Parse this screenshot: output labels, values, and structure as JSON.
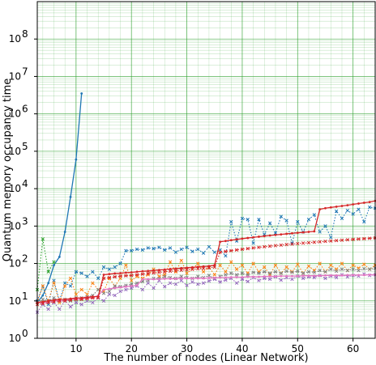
{
  "chart_data": {
    "type": "line",
    "title": "",
    "xlabel": "The number of nodes (Linear Network)",
    "ylabel": "Quantum memory occupancy time",
    "xlim": [
      3,
      64
    ],
    "ylim": [
      1,
      1000000000
    ],
    "yscale": "log",
    "grid": true,
    "grid_minor": true,
    "grid_color": "#2ca02c",
    "legend": "none",
    "x_ticks": [
      10,
      20,
      30,
      40,
      50,
      60
    ],
    "x_tick_labels": [
      "10",
      "20",
      "30",
      "40",
      "50",
      "60"
    ],
    "y_ticks": [
      1,
      10,
      100,
      1000,
      10000,
      100000,
      1000000,
      10000000,
      100000000
    ],
    "y_tick_labels": [
      {
        "base": "10",
        "exp": "0"
      },
      {
        "base": "10",
        "exp": "1"
      },
      {
        "base": "10",
        "exp": "2"
      },
      {
        "base": "10",
        "exp": "3"
      },
      {
        "base": "10",
        "exp": "4"
      },
      {
        "base": "10",
        "exp": "5"
      },
      {
        "base": "10",
        "exp": "6"
      },
      {
        "base": "10",
        "exp": "7"
      },
      {
        "base": "10",
        "exp": "8"
      }
    ],
    "series": [
      {
        "color": "#1f77b4",
        "style": "solid",
        "marker": "dot",
        "x": [
          3,
          4,
          5,
          6,
          7,
          8,
          9,
          10,
          11
        ],
        "y": [
          9,
          14,
          30,
          90,
          150,
          700,
          6000,
          60000,
          3500000
        ]
      },
      {
        "color": "#2ca02c",
        "style": "dotted",
        "marker": "x",
        "x": [
          3,
          4,
          5,
          6
        ],
        "y": [
          20,
          450,
          60,
          110
        ]
      },
      {
        "color": "#1f77b4",
        "style": "dotted",
        "marker": "x",
        "x": [
          3,
          4,
          5,
          6,
          7,
          8,
          9,
          10,
          11,
          12,
          13,
          14,
          15,
          16,
          17,
          18,
          19,
          20,
          21,
          22,
          23,
          24,
          25,
          26,
          27,
          28,
          29,
          30,
          31,
          32,
          33,
          34,
          35,
          36,
          37,
          38,
          39,
          40,
          41,
          42,
          43,
          44,
          45,
          46,
          47,
          48,
          49,
          50,
          51,
          52,
          53,
          54,
          55,
          56,
          57,
          58,
          59,
          60,
          61,
          62,
          63,
          64
        ],
        "y": [
          10,
          25,
          8,
          35,
          10,
          30,
          25,
          60,
          55,
          45,
          60,
          40,
          80,
          70,
          80,
          100,
          220,
          220,
          240,
          230,
          260,
          250,
          270,
          230,
          260,
          200,
          240,
          270,
          210,
          240,
          190,
          280,
          200,
          230,
          160,
          1300,
          400,
          1600,
          1500,
          350,
          1500,
          600,
          1200,
          650,
          1800,
          1400,
          350,
          1300,
          700,
          1500,
          2000,
          700,
          1000,
          500,
          2500,
          1600,
          2600,
          2100,
          2800,
          1300,
          3200,
          3000
        ]
      },
      {
        "color": "#ff7f0e",
        "style": "dotted",
        "marker": "x",
        "x": [
          3,
          4,
          5,
          6,
          7,
          8,
          9,
          10,
          11,
          12,
          13,
          14,
          15,
          16,
          17,
          18,
          19,
          20,
          21,
          22,
          23,
          24,
          25,
          26,
          27,
          28,
          29,
          30,
          31,
          32,
          33,
          34,
          35,
          36,
          37,
          38,
          39,
          40,
          41,
          42,
          43,
          44,
          45,
          46,
          47,
          48,
          49,
          50,
          51,
          52,
          53,
          54,
          55,
          56,
          57,
          58,
          59,
          60,
          61,
          62,
          63,
          64
        ],
        "y": [
          9,
          25,
          10,
          30,
          9,
          25,
          40,
          15,
          20,
          15,
          30,
          20,
          18,
          40,
          25,
          40,
          90,
          35,
          45,
          40,
          50,
          70,
          45,
          50,
          110,
          60,
          120,
          55,
          70,
          100,
          60,
          80,
          50,
          90,
          60,
          110,
          70,
          90,
          55,
          100,
          60,
          80,
          50,
          90,
          55,
          80,
          60,
          95,
          55,
          85,
          65,
          100,
          60,
          90,
          70,
          100,
          65,
          90,
          75,
          95,
          70,
          90
        ]
      },
      {
        "color": "#7f7f7f",
        "style": "dotted",
        "marker": "x",
        "x": [
          3,
          4,
          5,
          6,
          7,
          8,
          9,
          10,
          11,
          12,
          13,
          14,
          15,
          16,
          17,
          18,
          19,
          20,
          21,
          22,
          23,
          24,
          25,
          26,
          27,
          28,
          29,
          30,
          31,
          32,
          33,
          34,
          35,
          36,
          37,
          38,
          39,
          40,
          41,
          42,
          43,
          44,
          45,
          46,
          47,
          48,
          49,
          50,
          51,
          52,
          53,
          54,
          55,
          56,
          57,
          58,
          59,
          60,
          61,
          62,
          63,
          64
        ],
        "y": [
          9,
          11,
          10,
          12,
          10,
          11,
          10,
          12,
          12,
          13,
          14,
          20,
          16,
          18,
          25,
          24,
          26,
          28,
          30,
          33,
          35,
          40,
          40,
          45,
          42,
          40,
          45,
          42,
          40,
          45,
          42,
          48,
          40,
          45,
          50,
          55,
          50,
          55,
          50,
          58,
          55,
          60,
          55,
          60,
          55,
          62,
          58,
          62,
          55,
          60,
          58,
          65,
          60,
          70,
          62,
          70,
          65,
          70,
          65,
          72,
          70,
          75
        ]
      },
      {
        "color": "#9467bd",
        "style": "dotted",
        "marker": "x",
        "x": [
          3,
          4,
          5,
          6,
          7,
          8,
          9,
          10,
          11,
          12,
          13,
          14,
          15,
          16,
          17,
          18,
          19,
          20,
          21,
          22,
          23,
          24,
          25,
          26,
          27,
          28,
          29,
          30,
          31,
          32,
          33,
          34,
          35,
          36,
          37,
          38,
          39,
          40,
          41,
          42,
          43,
          44,
          45,
          46,
          47,
          48,
          49,
          50,
          51,
          52,
          53,
          54,
          55,
          56,
          57,
          58,
          59,
          60,
          61,
          62,
          63,
          64
        ],
        "y": [
          5,
          8,
          6,
          9,
          6,
          10,
          7,
          9,
          8,
          10,
          9,
          12,
          10,
          15,
          14,
          18,
          20,
          22,
          25,
          20,
          30,
          22,
          35,
          24,
          30,
          28,
          35,
          26,
          32,
          28,
          30,
          34,
          38,
          32,
          36,
          40,
          30,
          38,
          33,
          42,
          35,
          40,
          38,
          44,
          36,
          42,
          38,
          46,
          40,
          44,
          42,
          48,
          40,
          46,
          42,
          50,
          44,
          48,
          46,
          52,
          48,
          50
        ]
      },
      {
        "color": "#e377c2",
        "style": "solid",
        "marker": "dot",
        "x": [
          3,
          4,
          5,
          6,
          7,
          8,
          9,
          10,
          11,
          12,
          13,
          14,
          15,
          16,
          17,
          18,
          19,
          20,
          21,
          22,
          23,
          24,
          25,
          26,
          27,
          28,
          29,
          30,
          31,
          32,
          33,
          34,
          35,
          36,
          37,
          38,
          39,
          40,
          41,
          42,
          43,
          44,
          45,
          46,
          47,
          48,
          49,
          50,
          51,
          52,
          53,
          54,
          55,
          56,
          57,
          58,
          59,
          60,
          61,
          62,
          63,
          64
        ],
        "y": [
          9,
          9,
          9,
          10,
          10,
          10,
          11,
          11,
          11,
          12,
          12,
          14,
          20,
          21,
          22,
          23,
          24,
          25,
          26,
          38,
          38,
          38,
          38,
          39,
          39,
          39,
          40,
          40,
          40,
          40,
          40,
          41,
          41,
          42,
          42,
          43,
          43,
          43,
          44,
          44,
          44,
          45,
          45,
          45,
          46,
          46,
          46,
          46,
          47,
          47,
          47,
          47,
          48,
          48,
          48,
          48,
          49,
          49,
          49,
          49,
          50,
          50
        ]
      },
      {
        "color": "#d62728",
        "style": "solid",
        "marker": "dot",
        "x": [
          3,
          4,
          5,
          6,
          7,
          8,
          9,
          10,
          11,
          12,
          13,
          14,
          15,
          16,
          17,
          18,
          19,
          20,
          21,
          22,
          23,
          24,
          25,
          26,
          27,
          28,
          29,
          30,
          31,
          32,
          33,
          34,
          35,
          36,
          37,
          38,
          39,
          40,
          41,
          42,
          43,
          44,
          45,
          46,
          47,
          48,
          49,
          50,
          51,
          52,
          53,
          54,
          55,
          56,
          57,
          58,
          59,
          60,
          61,
          62,
          63,
          64
        ],
        "y": [
          9,
          9.5,
          10,
          10.5,
          11,
          11,
          11.5,
          12,
          12,
          12.5,
          13,
          13,
          50,
          52,
          54,
          55,
          57,
          58,
          60,
          62,
          63,
          65,
          67,
          69,
          71,
          73,
          75,
          77,
          79,
          81,
          83,
          85,
          90,
          380,
          400,
          420,
          440,
          460,
          480,
          500,
          520,
          540,
          560,
          580,
          600,
          620,
          640,
          660,
          680,
          700,
          720,
          2800,
          3000,
          3150,
          3300,
          3450,
          3600,
          3800,
          4000,
          4200,
          4400,
          4700
        ]
      },
      {
        "color": "#d62728",
        "style": "dotted",
        "marker": "x",
        "x": [
          3,
          4,
          5,
          6,
          7,
          8,
          9,
          10,
          11,
          12,
          13,
          14,
          15,
          16,
          17,
          18,
          19,
          20,
          21,
          22,
          23,
          24,
          25,
          26,
          27,
          28,
          29,
          30,
          31,
          32,
          33,
          34,
          35,
          36,
          37,
          38,
          39,
          40,
          41,
          42,
          43,
          44,
          45,
          46,
          47,
          48,
          49,
          50,
          51,
          52,
          53,
          54,
          55,
          56,
          57,
          58,
          59,
          60,
          61,
          62,
          63,
          64
        ],
        "y": [
          8,
          8.5,
          9,
          9.5,
          10,
          10,
          10.5,
          11,
          11,
          11.5,
          12,
          12,
          40,
          42,
          44,
          46,
          47,
          48,
          50,
          52,
          54,
          56,
          58,
          60,
          62,
          64,
          66,
          68,
          70,
          72,
          74,
          76,
          80,
          200,
          210,
          220,
          230,
          240,
          250,
          260,
          270,
          280,
          290,
          300,
          310,
          320,
          330,
          340,
          350,
          360,
          370,
          380,
          390,
          400,
          410,
          420,
          430,
          440,
          450,
          460,
          470,
          480
        ]
      }
    ]
  }
}
